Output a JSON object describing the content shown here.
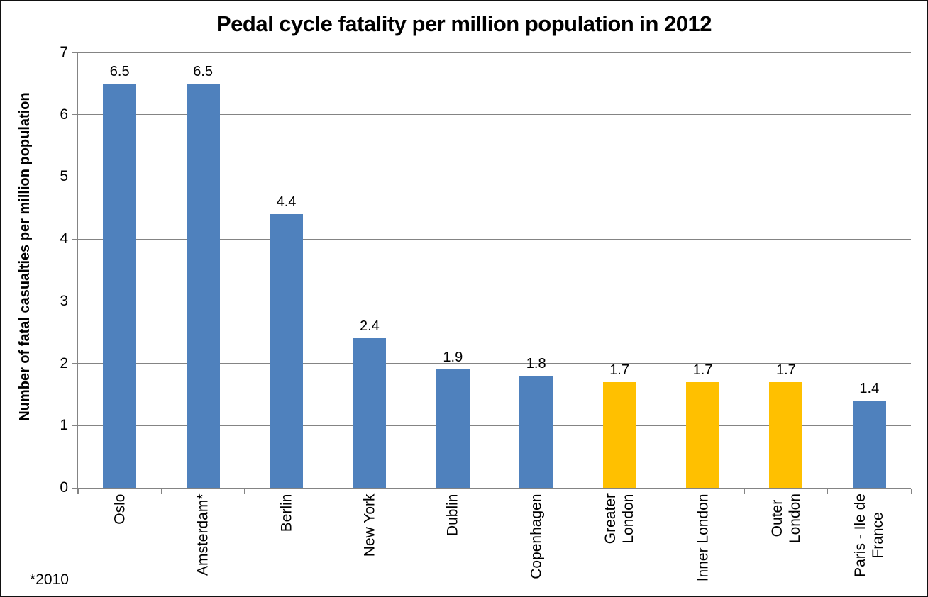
{
  "chart_data": {
    "type": "bar",
    "title": "Pedal cycle fatality per million population in 2012",
    "ylabel": "Number of fatal casualties per million population",
    "xlabel": "",
    "footnote": "*2010",
    "ylim": [
      0,
      7
    ],
    "yticks": [
      0,
      1,
      2,
      3,
      4,
      5,
      6,
      7
    ],
    "grid": true,
    "legend_position": "none",
    "categories": [
      "Oslo",
      "Amsterdam*",
      "Berlin",
      "New York",
      "Dublin",
      "Copenhagen",
      "Greater London",
      "Inner London",
      "Outer London",
      "Paris - Ile de France"
    ],
    "values": [
      6.5,
      6.5,
      4.4,
      2.4,
      1.9,
      1.8,
      1.7,
      1.7,
      1.7,
      1.4
    ],
    "category_label_lines": [
      [
        "Oslo"
      ],
      [
        "Amsterdam*"
      ],
      [
        "Berlin"
      ],
      [
        "New York"
      ],
      [
        "Dublin"
      ],
      [
        "Copenhagen"
      ],
      [
        "Greater",
        "London"
      ],
      [
        "Inner London"
      ],
      [
        "Outer",
        "London"
      ],
      [
        "Paris - Ile de",
        "France"
      ]
    ],
    "highlighted_indices": [
      6,
      7,
      8
    ],
    "colors": {
      "default_bar": "#4F81BD",
      "highlight_bar": "#FFC000",
      "gridline": "#848484",
      "text": "#000000"
    }
  }
}
